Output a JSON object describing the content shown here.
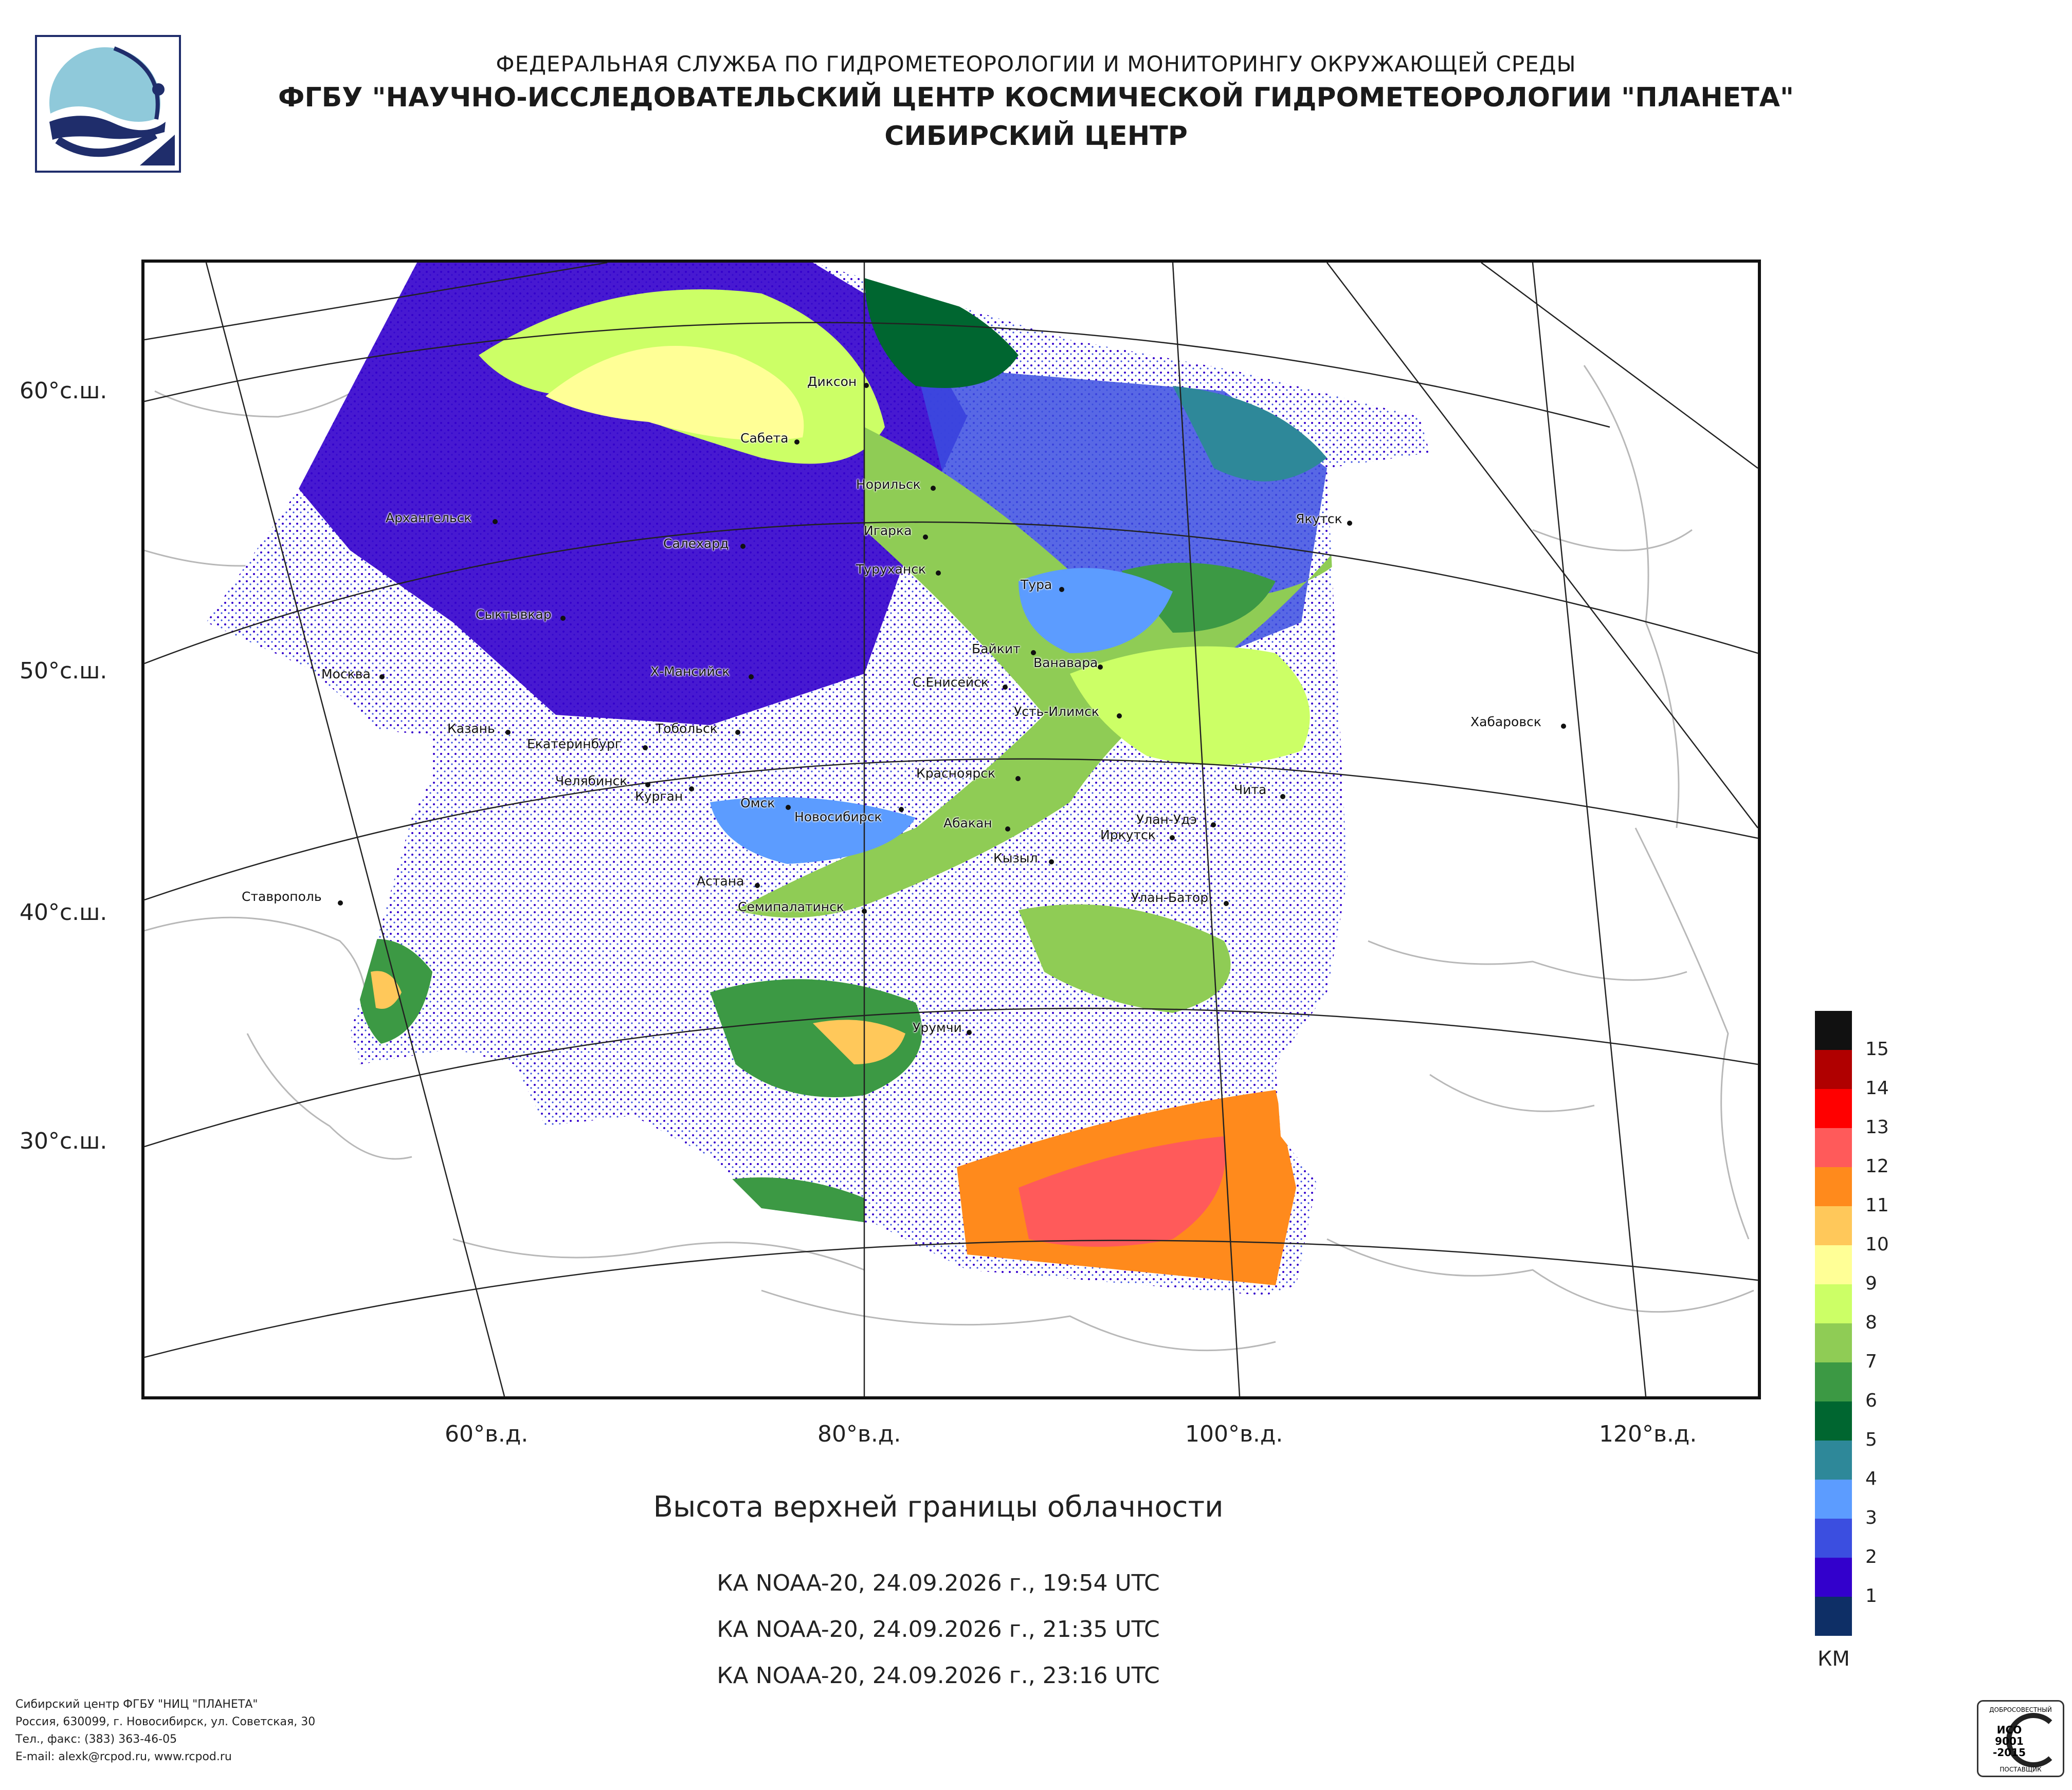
{
  "header": {
    "line1": "ФЕДЕРАЛЬНАЯ СЛУЖБА ПО ГИДРОМЕТЕОРОЛОГИИ И МОНИТОРИНГУ ОКРУЖАЮЩЕЙ СРЕДЫ",
    "line2": "ФГБУ \"НАУЧНО-ИССЛЕДОВАТЕЛЬСКИЙ ЦЕНТР КОСМИЧЕСКОЙ ГИДРОМЕТЕОРОЛОГИИ \"ПЛАНЕТА\"",
    "line3": "СИБИРСКИЙ ЦЕНТР"
  },
  "map": {
    "latitude_labels": [
      "60°с.ш.",
      "50°с.ш.",
      "40°с.ш.",
      "30°с.ш."
    ],
    "longitude_labels": [
      "60°в.д.",
      "80°в.д.",
      "100°в.д.",
      "120°в.д."
    ],
    "cities": [
      "Диксон",
      "Сабета",
      "Норильск",
      "Архангельск",
      "Салехард",
      "Игарка",
      "Туруханск",
      "Тура",
      "Якутск",
      "Сыктывкар",
      "Байкит",
      "Ванавара",
      "Москва",
      "Х-Мансийск",
      "С.Енисейск",
      "Усть-Илимск",
      "Казань",
      "Екатеринбург",
      "Тобольск",
      "Хабаровск",
      "Челябинск",
      "Красноярск",
      "Курган",
      "Омск",
      "Чита",
      "Новосибирск",
      "Абакан",
      "Улан-Удэ",
      "Иркутск",
      "Кызыл",
      "Астана",
      "Ставрополь",
      "Семипалатинск",
      "Улан-Батор",
      "Урумчи"
    ]
  },
  "title": "Высота верхней границы облачности",
  "passes": [
    "КА NOAA-20, 24.09.2026 г., 19:54 UTC",
    "КА NOAA-20, 24.09.2026 г., 21:35 UTC",
    "КА NOAA-20, 24.09.2026 г., 23:16 UTC"
  ],
  "legend": {
    "unit": "КМ",
    "levels": [
      {
        "label": "15",
        "color": "#111111"
      },
      {
        "label": "14",
        "color": "#b00000"
      },
      {
        "label": "13",
        "color": "#ff0000"
      },
      {
        "label": "12",
        "color": "#ff5a5a"
      },
      {
        "label": "11",
        "color": "#ff8a1c"
      },
      {
        "label": "10",
        "color": "#ffc85a"
      },
      {
        "label": "9",
        "color": "#ffff96"
      },
      {
        "label": "8",
        "color": "#ccff66"
      },
      {
        "label": "7",
        "color": "#8fcc55"
      },
      {
        "label": "6",
        "color": "#3c9944"
      },
      {
        "label": "5",
        "color": "#006630"
      },
      {
        "label": "4",
        "color": "#2e8899"
      },
      {
        "label": "3",
        "color": "#5c9cff"
      },
      {
        "label": "2",
        "color": "#3b4ee0"
      },
      {
        "label": "1",
        "color": "#3300cc"
      },
      {
        "label": "",
        "color": "#0e2f66"
      }
    ]
  },
  "footer": {
    "line1": "Сибирский центр ФГБУ \"НИЦ \"ПЛАНЕТА\"",
    "line2": "Россия, 630099, г. Новосибирск, ул. Советская, 30",
    "line3": "Тел., факс: (383) 363-46-05",
    "line4": "E-mail: alexk@rcpod.ru, www.rcpod.ru"
  },
  "iso_badge": {
    "top": "ДОБРОСОВЕСТНЫЙ",
    "mid1": "ИСО",
    "mid2": "9001",
    "mid3": "-2015",
    "bottom": "ПОСТАВЩИК"
  }
}
